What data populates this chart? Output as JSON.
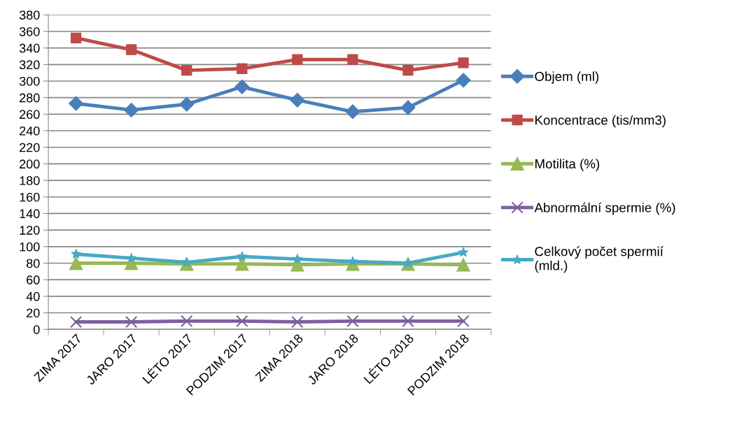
{
  "chart_data": {
    "type": "line",
    "categories": [
      "ZIMA 2017",
      "JARO 2017",
      "LÉTO 2017",
      "PODZIM 2017",
      "ZIMA 2018",
      "JARO 2018",
      "LÉTO 2018",
      "PODZIM 2018"
    ],
    "series": [
      {
        "name": "Objem (ml)",
        "color": "#4a7ebb",
        "marker": "diamond",
        "values": [
          273,
          265,
          272,
          293,
          277,
          263,
          268,
          301
        ]
      },
      {
        "name": "Koncentrace (tis/mm3)",
        "color": "#be4b48",
        "marker": "square",
        "values": [
          352,
          338,
          313,
          315,
          326,
          326,
          313,
          322
        ]
      },
      {
        "name": "Motilita (%)",
        "color": "#98b954",
        "marker": "triangle",
        "values": [
          80,
          80,
          79,
          79,
          78,
          79,
          79,
          78
        ]
      },
      {
        "name": "Abnormální spermie (%)",
        "color": "#7d5fa0",
        "marker": "cross",
        "values": [
          9,
          9,
          10,
          10,
          9,
          10,
          10,
          10
        ]
      },
      {
        "name": "Celkový počet spermií (mld.)",
        "color": "#46aac5",
        "marker": "star",
        "values": [
          91,
          86,
          81,
          88,
          85,
          82,
          80,
          93
        ]
      }
    ],
    "ylim": [
      0,
      380
    ],
    "yticks": [
      0,
      20,
      40,
      60,
      80,
      100,
      120,
      140,
      160,
      180,
      200,
      220,
      240,
      260,
      280,
      300,
      320,
      340,
      360,
      380
    ],
    "grid": "y",
    "legend": "right",
    "line_style": "solid"
  }
}
